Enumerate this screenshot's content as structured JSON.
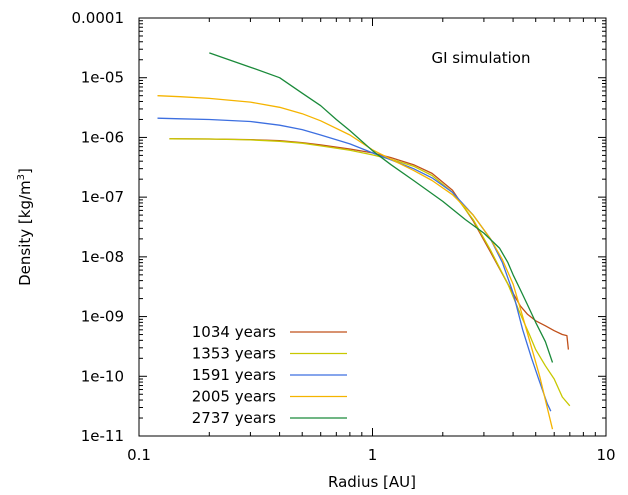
{
  "chart_data": {
    "type": "line",
    "title": "",
    "annotation": "GI simulation",
    "xlabel": "Radius [AU]",
    "ylabel": "Density [kg/m",
    "ylabel_sup": "3",
    "ylabel_end": "]",
    "xscale": "log",
    "yscale": "log",
    "xlim": [
      0.1,
      10
    ],
    "ylim": [
      1e-11,
      0.0001
    ],
    "xticks": [
      {
        "value": 0.1,
        "label": "0.1"
      },
      {
        "value": 1,
        "label": "1"
      },
      {
        "value": 10,
        "label": "10"
      }
    ],
    "yticks": [
      {
        "value": 1e-11,
        "label": "1e-11"
      },
      {
        "value": 1e-10,
        "label": "1e-10"
      },
      {
        "value": 1e-09,
        "label": "1e-09"
      },
      {
        "value": 1e-08,
        "label": "1e-08"
      },
      {
        "value": 1e-07,
        "label": "1e-07"
      },
      {
        "value": 1e-06,
        "label": "1e-06"
      },
      {
        "value": 1e-05,
        "label": "1e-05"
      },
      {
        "value": 0.0001,
        "label": "0.0001"
      }
    ],
    "grid": false,
    "legend_position": "bottom-left",
    "series": [
      {
        "name": "1034 years",
        "color": "#c0501a",
        "x": [
          0.135,
          0.2,
          0.3,
          0.4,
          0.5,
          0.6,
          0.8,
          1.0,
          1.2,
          1.5,
          1.8,
          2.2,
          2.7,
          3.2,
          3.8,
          4.3,
          4.6,
          5.0,
          5.5,
          6.0,
          6.5,
          6.8,
          6.9
        ],
        "y": [
          9.5e-07,
          9.4e-07,
          9.2e-07,
          8.8e-07,
          8.2e-07,
          7.5e-07,
          6.4e-07,
          5.5e-07,
          4.6e-07,
          3.5e-07,
          2.5e-07,
          1.3e-07,
          4e-08,
          1.2e-08,
          3.5e-09,
          1.5e-09,
          1.1e-09,
          8.5e-10,
          7e-10,
          5.8e-10,
          5e-10,
          4.8e-10,
          2.8e-10
        ]
      },
      {
        "name": "1353 years",
        "color": "#c8c800",
        "x": [
          0.135,
          0.2,
          0.3,
          0.4,
          0.5,
          0.6,
          0.8,
          1.0,
          1.2,
          1.5,
          1.8,
          2.2,
          2.7,
          3.2,
          3.8,
          4.3,
          4.7,
          5.0,
          5.5,
          6.0,
          6.5,
          7.0
        ],
        "y": [
          9.5e-07,
          9.4e-07,
          9.1e-07,
          8.6e-07,
          8e-07,
          7.2e-07,
          6.1e-07,
          5.1e-07,
          4.3e-07,
          3.3e-07,
          2.3e-07,
          1.2e-07,
          4.2e-08,
          1.3e-08,
          3.5e-09,
          1.1e-09,
          5e-10,
          2.8e-10,
          1.5e-10,
          9e-11,
          4.5e-11,
          3.2e-11
        ]
      },
      {
        "name": "1591 years",
        "color": "#3d6fe0",
        "x": [
          0.12,
          0.15,
          0.2,
          0.3,
          0.4,
          0.5,
          0.6,
          0.8,
          1.0,
          1.2,
          1.5,
          1.8,
          2.2,
          2.7,
          3.2,
          3.6,
          4.0,
          4.4,
          4.8,
          5.2,
          5.6,
          5.8
        ],
        "y": [
          2.1e-06,
          2.05e-06,
          2e-06,
          1.85e-06,
          1.6e-06,
          1.35e-06,
          1.1e-06,
          7.8e-07,
          5.5e-07,
          4.2e-07,
          3e-07,
          2.1e-07,
          1.2e-07,
          5e-08,
          2e-08,
          8e-09,
          2.5e-09,
          6e-10,
          2e-10,
          8e-11,
          3.5e-11,
          2.6e-11
        ]
      },
      {
        "name": "2005 years",
        "color": "#f5b400",
        "x": [
          0.12,
          0.15,
          0.2,
          0.3,
          0.4,
          0.5,
          0.6,
          0.8,
          1.0,
          1.2,
          1.5,
          1.8,
          2.2,
          2.7,
          3.2,
          3.6,
          4.0,
          4.4,
          4.8,
          5.2,
          5.6,
          5.9
        ],
        "y": [
          5e-06,
          4.8e-06,
          4.5e-06,
          3.9e-06,
          3.2e-06,
          2.5e-06,
          1.9e-06,
          1.1e-06,
          6.2e-07,
          4.3e-07,
          2.8e-07,
          1.9e-07,
          1.1e-07,
          5e-08,
          2e-08,
          9e-09,
          3.5e-09,
          1e-09,
          3e-10,
          1e-10,
          3e-11,
          1.3e-11
        ]
      },
      {
        "name": "2737 years",
        "color": "#1a8a3a",
        "x": [
          0.2,
          0.3,
          0.4,
          0.5,
          0.6,
          0.7,
          0.8,
          1.0,
          1.2,
          1.5,
          2.0,
          2.5,
          3.0,
          3.5,
          3.8,
          4.0,
          4.3,
          4.6,
          5.0,
          5.5,
          5.9
        ],
        "y": [
          2.6e-05,
          1.5e-05,
          1e-05,
          5.5e-06,
          3.4e-06,
          2e-06,
          1.3e-06,
          6e-07,
          3.5e-07,
          1.9e-07,
          8.5e-08,
          4.2e-08,
          2.5e-08,
          1.4e-08,
          8e-09,
          5e-09,
          2.8e-09,
          1.6e-09,
          8e-10,
          3.8e-10,
          1.7e-10
        ]
      }
    ]
  }
}
